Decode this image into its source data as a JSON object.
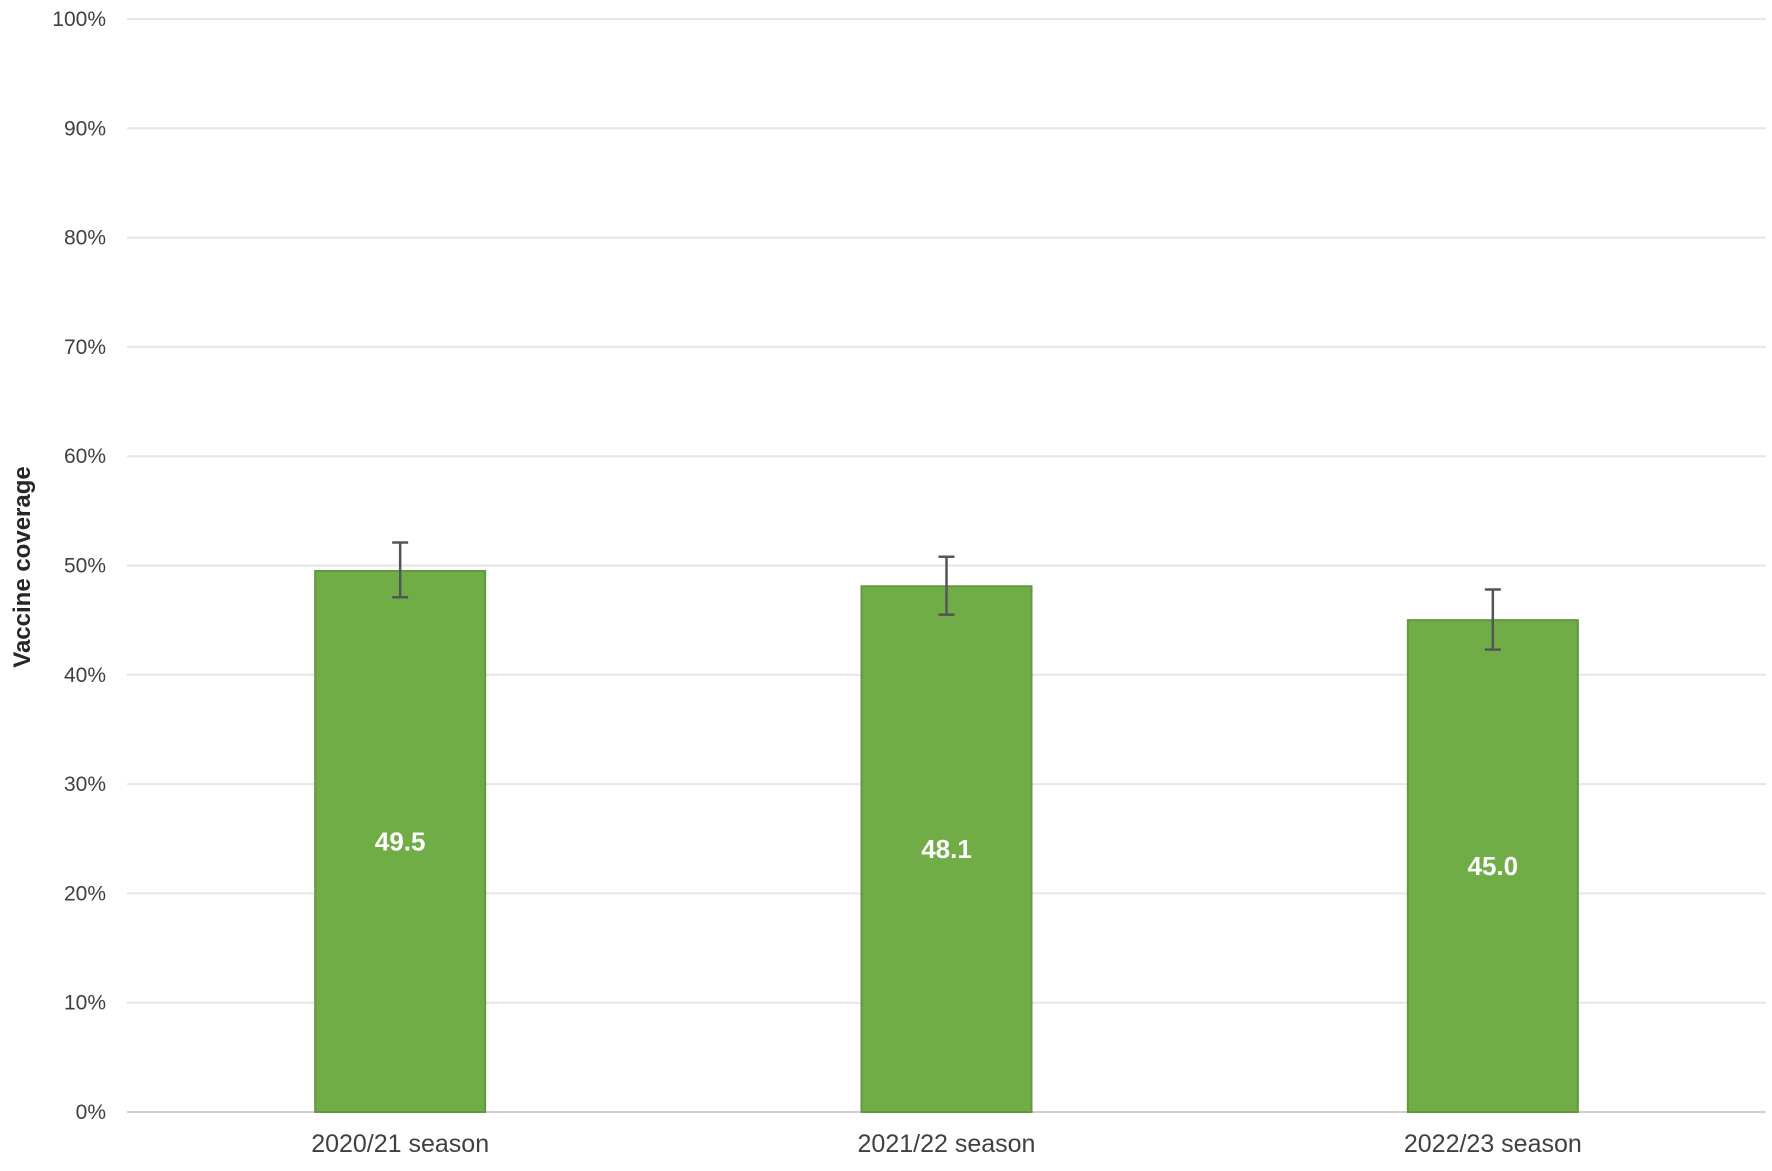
{
  "chart_data": {
    "type": "bar",
    "ylabel": "Vaccine coverage",
    "xlabel": "",
    "ylim": [
      0,
      100
    ],
    "y_ticks": [
      "0%",
      "10%",
      "20%",
      "30%",
      "40%",
      "50%",
      "60%",
      "70%",
      "80%",
      "90%",
      "100%"
    ],
    "y_tick_values": [
      0,
      10,
      20,
      30,
      40,
      50,
      60,
      70,
      80,
      90,
      100
    ],
    "categories": [
      "2020/21 season",
      "2021/22 season",
      "2022/23 season"
    ],
    "values": [
      49.5,
      48.1,
      45.0
    ],
    "data_labels": [
      "49.5",
      "48.1",
      "45.0"
    ],
    "error_low": [
      47.1,
      45.5,
      42.3
    ],
    "error_high": [
      52.1,
      50.8,
      47.8
    ],
    "bar_color": "#70ad47",
    "bar_border_color": "#62983e",
    "grid": true,
    "legend": "none"
  }
}
